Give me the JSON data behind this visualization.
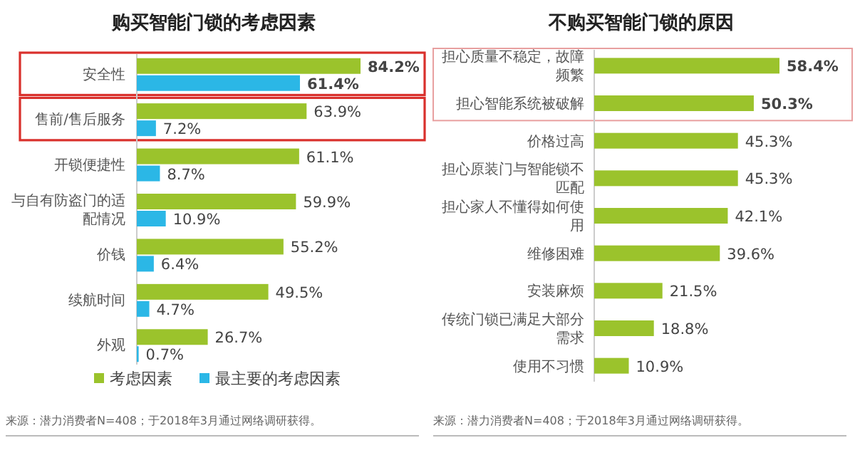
{
  "chart_data": [
    {
      "type": "bar",
      "orientation": "horizontal",
      "title": "购买智能门锁的考虑因素",
      "categories": [
        "安全性",
        "售前/售后服务",
        "开锁便捷性",
        "与自有防盗门的适配情况",
        "价钱",
        "续航时间",
        "外观"
      ],
      "series": [
        {
          "name": "考虑因素",
          "color": "#9bc32c",
          "values": [
            84.2,
            63.9,
            61.1,
            59.9,
            55.2,
            49.5,
            26.7
          ],
          "value_labels": [
            "84.2%",
            "63.9%",
            "61.1%",
            "59.9%",
            "55.2%",
            "49.5%",
            "26.7%"
          ]
        },
        {
          "name": "最主要的考虑因素",
          "color": "#2bb7e6",
          "values": [
            61.4,
            7.2,
            8.7,
            10.9,
            6.4,
            4.7,
            0.7
          ],
          "value_labels": [
            "61.4%",
            "7.2%",
            "8.7%",
            "10.9%",
            "6.4%",
            "4.7%",
            "0.7%"
          ]
        }
      ],
      "legend": "bottom",
      "annotations": [
        "来源：潜力消费者N=408；于2018年3月通过网络调研获得。"
      ]
    },
    {
      "type": "bar",
      "orientation": "horizontal",
      "title": "不购买智能门锁的原因",
      "categories": [
        "担心质量不稳定，故障频繁",
        "担心智能系统被破解",
        "价格过高",
        "担心原装门与智能锁不匹配",
        "担心家人不懂得如何使用",
        "维修困难",
        "安装麻烦",
        "传统门锁已满足大部分需求",
        "使用不习惯"
      ],
      "series": [
        {
          "color": "#9bc32c",
          "values": [
            58.4,
            50.3,
            45.3,
            45.3,
            42.1,
            39.6,
            21.5,
            18.8,
            10.9
          ],
          "value_labels": [
            "58.4%",
            "50.3%",
            "45.3%",
            "45.3%",
            "42.1%",
            "39.6%",
            "21.5%",
            "18.8%",
            "10.9%"
          ]
        }
      ],
      "legend": false,
      "annotations": [
        "来源：潜力消费者N=408；于2018年3月通过网络调研获得。"
      ]
    }
  ]
}
